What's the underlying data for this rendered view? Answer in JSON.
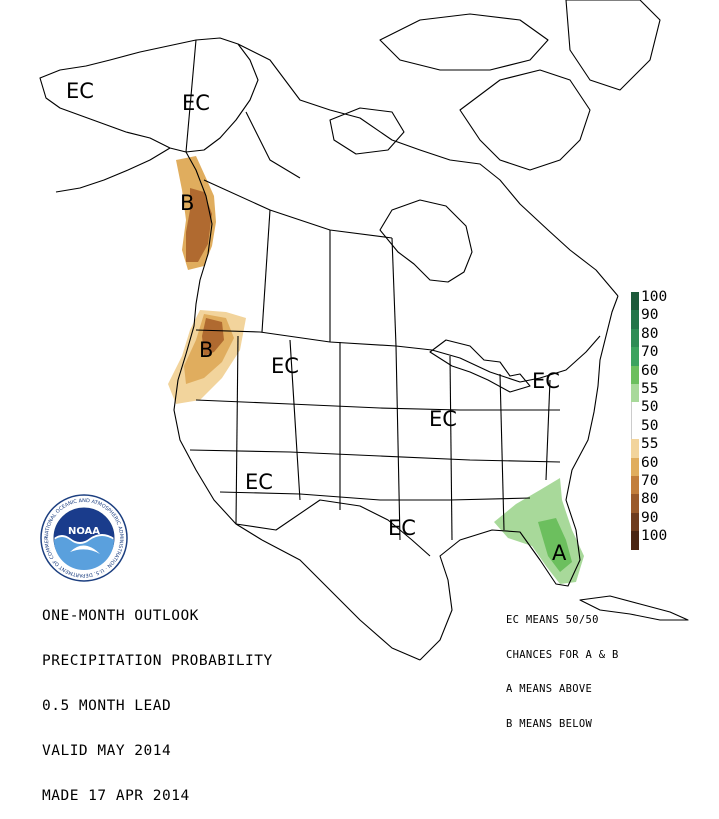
{
  "title_lines": [
    "ONE-MONTH OUTLOOK",
    "PRECIPITATION PROBABILITY",
    "0.5 MONTH LEAD",
    "VALID MAY 2014",
    "MADE 17 APR 2014"
  ],
  "notes_lines": [
    "EC MEANS 50/50",
    "CHANCES FOR A & B",
    "A MEANS ABOVE",
    "B MEANS BELOW"
  ],
  "logo": {
    "text": "NOAA",
    "ring_text": "NATIONAL OCEANIC AND ATMOSPHERIC ADMINISTRATION · U.S. DEPARTMENT OF COMMERCE"
  },
  "region_labels": [
    {
      "id": "alaska-west",
      "text": "EC"
    },
    {
      "id": "alaska-east",
      "text": "EC"
    },
    {
      "id": "bc-coast",
      "text": "B"
    },
    {
      "id": "pacific-nw",
      "text": "B"
    },
    {
      "id": "northern-rockies",
      "text": "EC"
    },
    {
      "id": "northeast",
      "text": "EC"
    },
    {
      "id": "midwest",
      "text": "EC"
    },
    {
      "id": "southwest",
      "text": "EC"
    },
    {
      "id": "texas",
      "text": "EC"
    },
    {
      "id": "florida",
      "text": "A"
    }
  ],
  "legend": {
    "labels": [
      "100",
      "90",
      "80",
      "70",
      "60",
      "55",
      "50",
      "50",
      "55",
      "60",
      "70",
      "80",
      "90",
      "100"
    ],
    "colors": [
      "#1d5a3a",
      "#237548",
      "#2e8c55",
      "#3ca35f",
      "#6cbf5e",
      "#a8d99a",
      "#ffffff",
      "#ffffff",
      "#f2d49c",
      "#e0ad5e",
      "#c27e3c",
      "#9a5a2b",
      "#6e3c1e",
      "#4a2512"
    ]
  },
  "colors": {
    "above_light": "#a8d99a",
    "above_mid": "#6cbf5e",
    "below_light": "#f2d49c",
    "below_mid": "#e0ad5e",
    "below_dark": "#b06a30",
    "noaa_blue": "#1c5aa6"
  }
}
